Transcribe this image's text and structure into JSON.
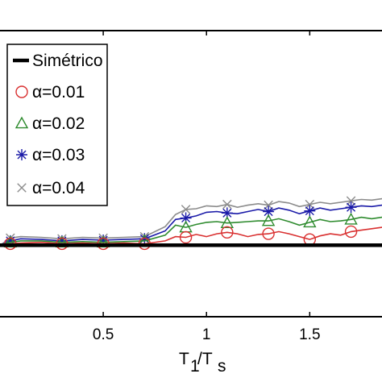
{
  "chart_data": {
    "type": "line",
    "xlabel_main": "T",
    "xlabel_sub1": "1",
    "xlabel_sep": "/T",
    "xlabel_sub2": "s",
    "x_ticks": [
      0.5,
      1,
      1.5
    ],
    "x_tick_labels": [
      "0.5",
      "1",
      "1.5"
    ],
    "xlim": [
      0,
      1.85
    ],
    "ylim": [
      -0.1,
      0.3
    ],
    "grid": false,
    "legend_position": "top-left",
    "series": [
      {
        "name": "Simétrico",
        "color": "#000000",
        "marker": "none",
        "x": [
          0.0,
          1.85
        ],
        "y": [
          0.0,
          0.0
        ]
      },
      {
        "name": "α=0.01",
        "color": "#d93030",
        "marker": "circle",
        "x": [
          0.0,
          0.05,
          0.1,
          0.2,
          0.3,
          0.4,
          0.5,
          0.6,
          0.7,
          0.8,
          0.85,
          0.9,
          0.95,
          1.0,
          1.05,
          1.1,
          1.15,
          1.2,
          1.25,
          1.3,
          1.35,
          1.4,
          1.45,
          1.5,
          1.55,
          1.6,
          1.65,
          1.7,
          1.75,
          1.8,
          1.85
        ],
        "y": [
          0.0,
          0.002,
          0.003,
          0.004,
          0.002,
          0.003,
          0.002,
          0.003,
          0.002,
          0.006,
          0.012,
          0.011,
          0.015,
          0.012,
          0.016,
          0.018,
          0.016,
          0.012,
          0.015,
          0.016,
          0.019,
          0.016,
          0.012,
          0.008,
          0.013,
          0.016,
          0.014,
          0.019,
          0.021,
          0.023,
          0.025
        ]
      },
      {
        "name": "α=0.02",
        "color": "#2e8b2e",
        "marker": "triangle",
        "x": [
          0.0,
          0.05,
          0.1,
          0.2,
          0.3,
          0.4,
          0.5,
          0.6,
          0.7,
          0.8,
          0.85,
          0.9,
          0.95,
          1.0,
          1.05,
          1.1,
          1.15,
          1.2,
          1.25,
          1.3,
          1.35,
          1.4,
          1.45,
          1.5,
          1.55,
          1.6,
          1.65,
          1.7,
          1.75,
          1.8,
          1.85
        ],
        "y": [
          0.0,
          0.004,
          0.006,
          0.006,
          0.004,
          0.005,
          0.004,
          0.005,
          0.006,
          0.014,
          0.028,
          0.025,
          0.029,
          0.032,
          0.033,
          0.031,
          0.032,
          0.033,
          0.034,
          0.034,
          0.037,
          0.033,
          0.028,
          0.032,
          0.036,
          0.033,
          0.034,
          0.036,
          0.039,
          0.037,
          0.039
        ]
      },
      {
        "name": "α=0.03",
        "color": "#1a1aa8",
        "marker": "star",
        "x": [
          0.0,
          0.05,
          0.1,
          0.2,
          0.3,
          0.4,
          0.5,
          0.6,
          0.7,
          0.8,
          0.85,
          0.9,
          0.95,
          1.0,
          1.05,
          1.1,
          1.15,
          1.2,
          1.25,
          1.3,
          1.35,
          1.4,
          1.45,
          1.5,
          1.55,
          1.6,
          1.65,
          1.7,
          1.75,
          1.8,
          1.85
        ],
        "y": [
          0.0,
          0.006,
          0.009,
          0.008,
          0.006,
          0.008,
          0.007,
          0.008,
          0.009,
          0.02,
          0.036,
          0.038,
          0.041,
          0.046,
          0.047,
          0.045,
          0.044,
          0.047,
          0.05,
          0.047,
          0.052,
          0.049,
          0.044,
          0.048,
          0.052,
          0.049,
          0.051,
          0.053,
          0.055,
          0.054,
          0.056
        ]
      },
      {
        "name": "α=0.04",
        "color": "#8c8c8c",
        "marker": "x",
        "x": [
          0.0,
          0.05,
          0.1,
          0.2,
          0.3,
          0.4,
          0.5,
          0.6,
          0.7,
          0.8,
          0.85,
          0.9,
          0.95,
          1.0,
          1.05,
          1.1,
          1.15,
          1.2,
          1.25,
          1.3,
          1.35,
          1.4,
          1.45,
          1.5,
          1.55,
          1.6,
          1.65,
          1.7,
          1.75,
          1.8,
          1.85
        ],
        "y": [
          0.0,
          0.01,
          0.012,
          0.011,
          0.009,
          0.011,
          0.01,
          0.011,
          0.012,
          0.026,
          0.043,
          0.05,
          0.051,
          0.055,
          0.054,
          0.057,
          0.053,
          0.056,
          0.058,
          0.056,
          0.061,
          0.059,
          0.054,
          0.057,
          0.06,
          0.058,
          0.06,
          0.062,
          0.064,
          0.063,
          0.065
        ]
      }
    ],
    "marker_x": [
      0.05,
      0.3,
      0.5,
      0.7,
      0.9,
      1.1,
      1.3,
      1.5,
      1.7
    ]
  }
}
